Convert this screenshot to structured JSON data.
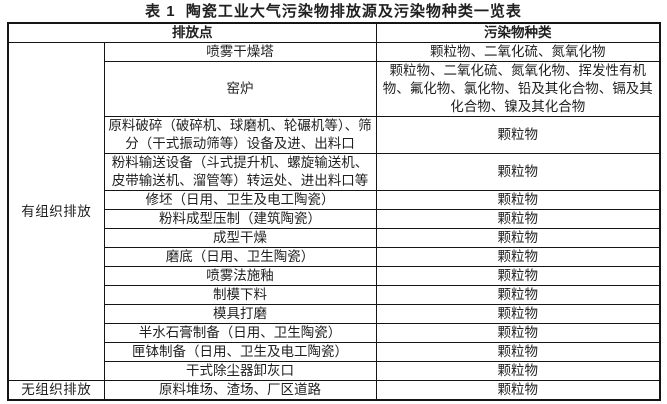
{
  "title": "表 1  陶瓷工业大气污染物排放源及污染物种类一览表",
  "colors": {
    "background": "#ffffff",
    "text": "#1f1f1f",
    "border": "#151515"
  },
  "table": {
    "headers": {
      "emission_point": "排放点",
      "pollutant_type": "污染物种类"
    },
    "groups": [
      {
        "category": "有组织排放",
        "rows": [
          {
            "point": "喷雾干燥塔",
            "pollutants": "颗粒物、二氧化硫、氮氧化物"
          },
          {
            "point": "窑炉",
            "pollutants": "颗粒物、二氧化硫、氮氧化物、挥发性有机物、氟化物、氯化物、铅及其化合物、镉及其化合物、镍及其化合物"
          },
          {
            "point": "原料破碎（破碎机、球磨机、轮碾机等）、筛分（干式振动筛等）设备及进、出料口",
            "pollutants": "颗粒物"
          },
          {
            "point": "粉料输送设备（斗式提升机、螺旋输送机、皮带输送机、溜管等）转运处、进出料口等",
            "pollutants": "颗粒物"
          },
          {
            "point": "修坯（日用、卫生及电工陶瓷）",
            "pollutants": "颗粒物"
          },
          {
            "point": "粉料成型压制（建筑陶瓷）",
            "pollutants": "颗粒物"
          },
          {
            "point": "成型干燥",
            "pollutants": "颗粒物"
          },
          {
            "point": "磨底（日用、卫生陶瓷）",
            "pollutants": "颗粒物"
          },
          {
            "point": "喷雾法施釉",
            "pollutants": "颗粒物"
          },
          {
            "point": "制模下料",
            "pollutants": "颗粒物"
          },
          {
            "point": "模具打磨",
            "pollutants": "颗粒物"
          },
          {
            "point": "半水石膏制备（日用、卫生陶瓷）",
            "pollutants": "颗粒物"
          },
          {
            "point": "匣钵制备（日用、卫生及电工陶瓷）",
            "pollutants": "颗粒物"
          },
          {
            "point": "干式除尘器卸灰口",
            "pollutants": "颗粒物"
          }
        ]
      },
      {
        "category": "无组织排放",
        "rows": [
          {
            "point": "原料堆场、渣场、厂区道路",
            "pollutants": "颗粒物"
          }
        ]
      }
    ]
  }
}
